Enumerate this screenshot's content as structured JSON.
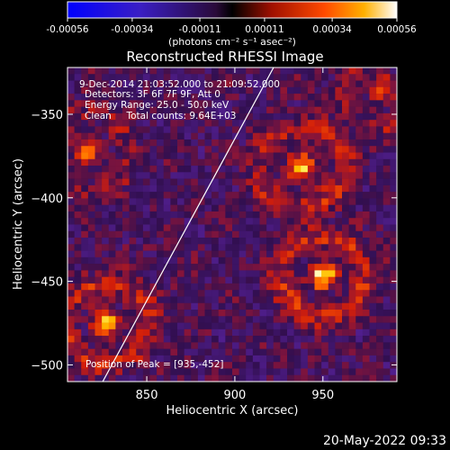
{
  "colorbar": {
    "ticks": [
      "-0.00056",
      "-0.00034",
      "-0.00011",
      "0.00011",
      "0.00034",
      "0.00056"
    ],
    "tick_values": [
      -0.00056,
      -0.00034,
      -0.00011,
      0.00011,
      0.00034,
      0.00056
    ],
    "range": [
      -0.00056,
      0.00056
    ],
    "units": "(photons cm⁻² s⁻¹ asec⁻²)"
  },
  "chart_data": {
    "type": "heatmap",
    "title": "Reconstructed RHESSI Image",
    "xlabel": "Heliocentric X (arcsec)",
    "ylabel": "Heliocentric Y (arcsec)",
    "xlim": [
      805,
      992
    ],
    "ylim": [
      -510,
      -322
    ],
    "xticks": [
      850,
      900,
      950
    ],
    "yticks": [
      -350,
      -400,
      -450,
      -500
    ],
    "annotations": [
      "9-Dec-2014 21:03:52.000 to 21:09:52.000",
      "Detectors: 3F 6F 7F 9F, Att 0",
      "Energy Range: 25.0 - 50.0 keV",
      "Clean     Total counts: 9.64E+03"
    ],
    "peak_label": "Position of Peak = [935,-452]",
    "peak": [
      935,
      -452
    ],
    "sources": [
      {
        "x": 938,
        "y": -382,
        "peak": 0.00045
      },
      {
        "x": 950,
        "y": -447,
        "peak": 0.00052
      },
      {
        "x": 827,
        "y": -475,
        "peak": 0.00048
      },
      {
        "x": 815,
        "y": -372,
        "peak": 0.0003
      },
      {
        "x": 985,
        "y": -335,
        "peak": 0.0003
      }
    ],
    "limb_line": {
      "x": [
        825,
        922
      ],
      "y": [
        -510,
        -322
      ]
    }
  },
  "footer": {
    "date": "20-May-2022 09:33"
  }
}
